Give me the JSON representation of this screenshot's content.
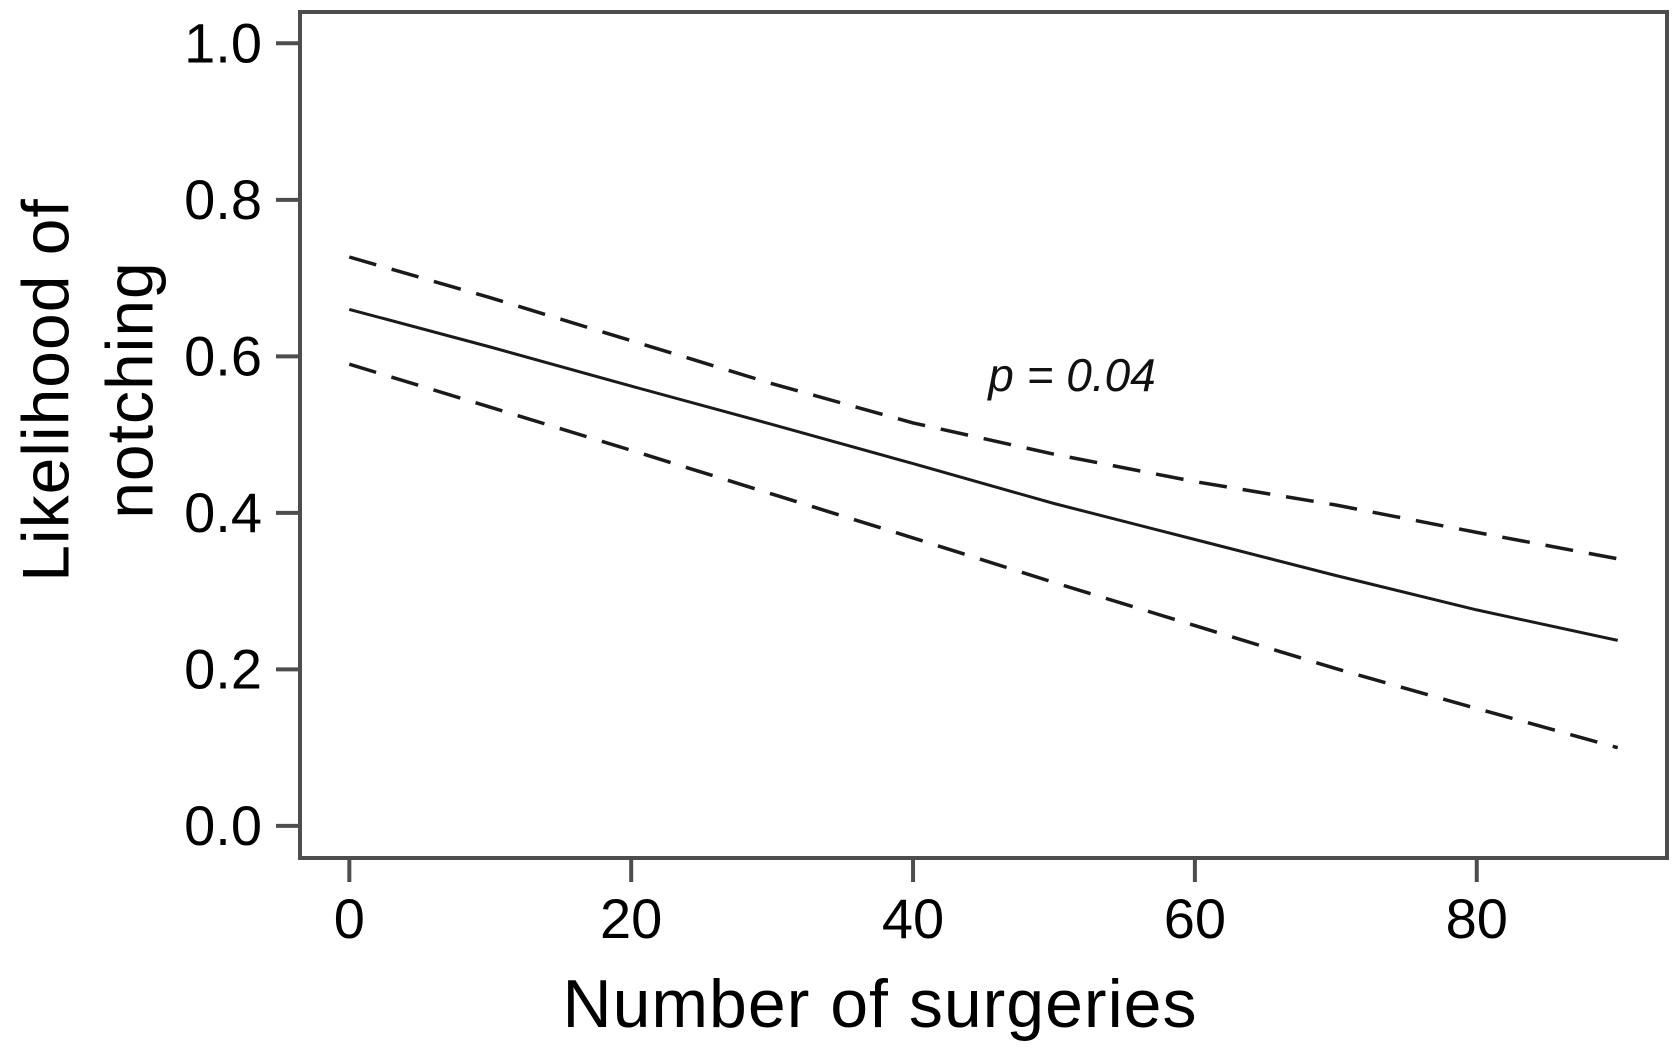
{
  "figure": {
    "background": "#ffffff",
    "frame_color": "#4d4d4d",
    "line_color": "#1a1a1a",
    "text_color": "#000000"
  },
  "chart_data": {
    "type": "line",
    "title": "",
    "xlabel": "Number of surgeries",
    "ylabel_lines": [
      "Likelihood of",
      "notching"
    ],
    "xlim": [
      -3.5,
      93.5
    ],
    "ylim": [
      -0.041,
      1.04
    ],
    "grid": false,
    "legend": "none",
    "x_ticks": {
      "values": [
        0,
        20,
        40,
        60,
        80
      ],
      "labels": [
        "0",
        "20",
        "40",
        "60",
        "80"
      ]
    },
    "y_ticks": {
      "values": [
        0.0,
        0.2,
        0.4,
        0.6,
        0.8,
        1.0
      ],
      "labels": [
        "0.0",
        "0.2",
        "0.4",
        "0.6",
        "0.8",
        "1.0"
      ]
    },
    "annotation": {
      "text": "p = 0.04",
      "x": 51,
      "y": 0.577,
      "style": "italic"
    },
    "series": [
      {
        "name": "predicted-likelihood",
        "style": "solid",
        "x": [
          0,
          10,
          20,
          30,
          40,
          50,
          60,
          70,
          80,
          90
        ],
        "y": [
          0.66,
          0.612,
          0.562,
          0.513,
          0.463,
          0.412,
          0.366,
          0.32,
          0.276,
          0.237
        ]
      },
      {
        "name": "upper-confidence-band",
        "style": "dashed",
        "x": [
          0,
          10,
          20,
          30,
          40,
          50,
          60,
          70,
          80,
          91
        ],
        "y": [
          0.727,
          0.675,
          0.62,
          0.565,
          0.515,
          0.475,
          0.44,
          0.41,
          0.375,
          0.338
        ]
      },
      {
        "name": "lower-confidence-band",
        "style": "dashed",
        "x": [
          0,
          10,
          20,
          30,
          40,
          50,
          60,
          70,
          80,
          90
        ],
        "y": [
          0.59,
          0.535,
          0.48,
          0.424,
          0.368,
          0.311,
          0.256,
          0.201,
          0.15,
          0.1
        ]
      }
    ]
  }
}
